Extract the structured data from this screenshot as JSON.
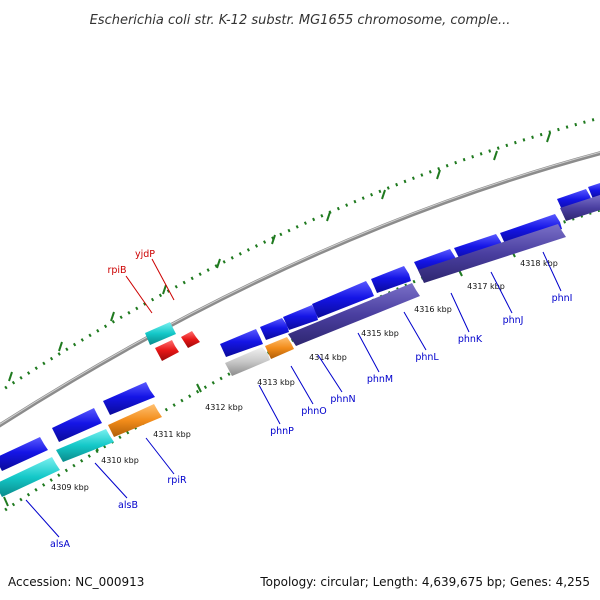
{
  "title": "Escherichia coli str. K-12 substr. MG1655 chromosome, comple...",
  "footer": {
    "accession": "Accession: NC_000913",
    "topology": "Topology: circular; Length: 4,639,675 bp; Genes: 4,255"
  },
  "kbp_labels": [
    "4309 kbp",
    "4310 kbp",
    "4311 kbp",
    "4312 kbp",
    "4313 kbp",
    "4314 kbp",
    "4315 kbp",
    "4316 kbp",
    "4317 kbp",
    "4318 kbp"
  ],
  "genes": [
    {
      "name": "yjdP",
      "color": "#cc0000"
    },
    {
      "name": "rpiB",
      "color": "#cc0000"
    },
    {
      "name": "alsA",
      "color": "#0000cc"
    },
    {
      "name": "alsB",
      "color": "#0000cc"
    },
    {
      "name": "rpiR",
      "color": "#0000cc"
    },
    {
      "name": "phnP",
      "color": "#0000cc"
    },
    {
      "name": "phnO",
      "color": "#0000cc"
    },
    {
      "name": "phnN",
      "color": "#0000cc"
    },
    {
      "name": "phnM",
      "color": "#0000cc"
    },
    {
      "name": "phnL",
      "color": "#0000cc"
    },
    {
      "name": "phnK",
      "color": "#0000cc"
    },
    {
      "name": "phnJ",
      "color": "#0000cc"
    },
    {
      "name": "phnI",
      "color": "#0000cc"
    }
  ],
  "colors": {
    "backbone": "#8c8c8c",
    "tick": "#1f7a1f",
    "forward_gene": "#1515e6",
    "reverse_gene": "#4a3fa0",
    "rna_gene": "#e61515",
    "cyan_feature": "#14c8c8",
    "orange_feature": "#f28c1a",
    "grey_feature": "#bdbdbd"
  }
}
